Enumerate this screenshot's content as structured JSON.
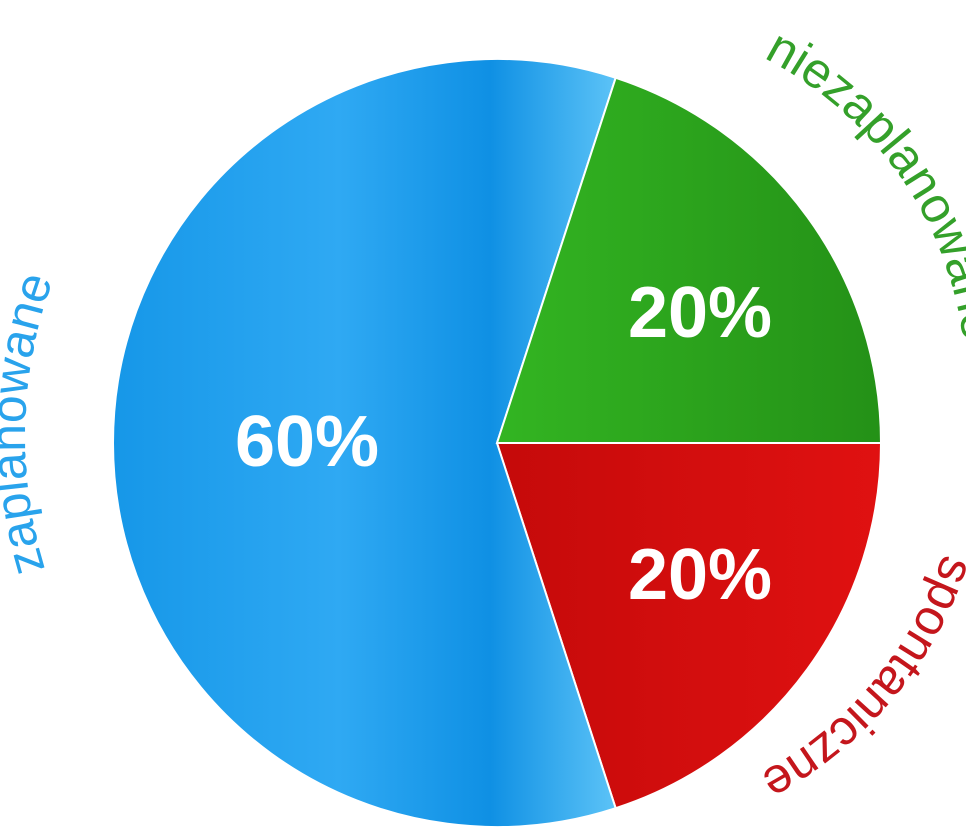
{
  "chart_data": {
    "type": "pie",
    "slices": [
      {
        "name": "zaplanowane",
        "value": 60,
        "label": "60%",
        "color": "#1aa0ee",
        "label_color": "#29a3ec"
      },
      {
        "name": "niezaplanowane",
        "value": 20,
        "label": "20%",
        "color": "#2aa61c",
        "label_color": "#34a02a"
      },
      {
        "name": "spontaniczne",
        "value": 20,
        "label": "20%",
        "color": "#d40c0c",
        "label_color": "#c4161c"
      }
    ],
    "start_angle_deg": 0,
    "direction": "clockwise-from-right",
    "legend": "none"
  }
}
